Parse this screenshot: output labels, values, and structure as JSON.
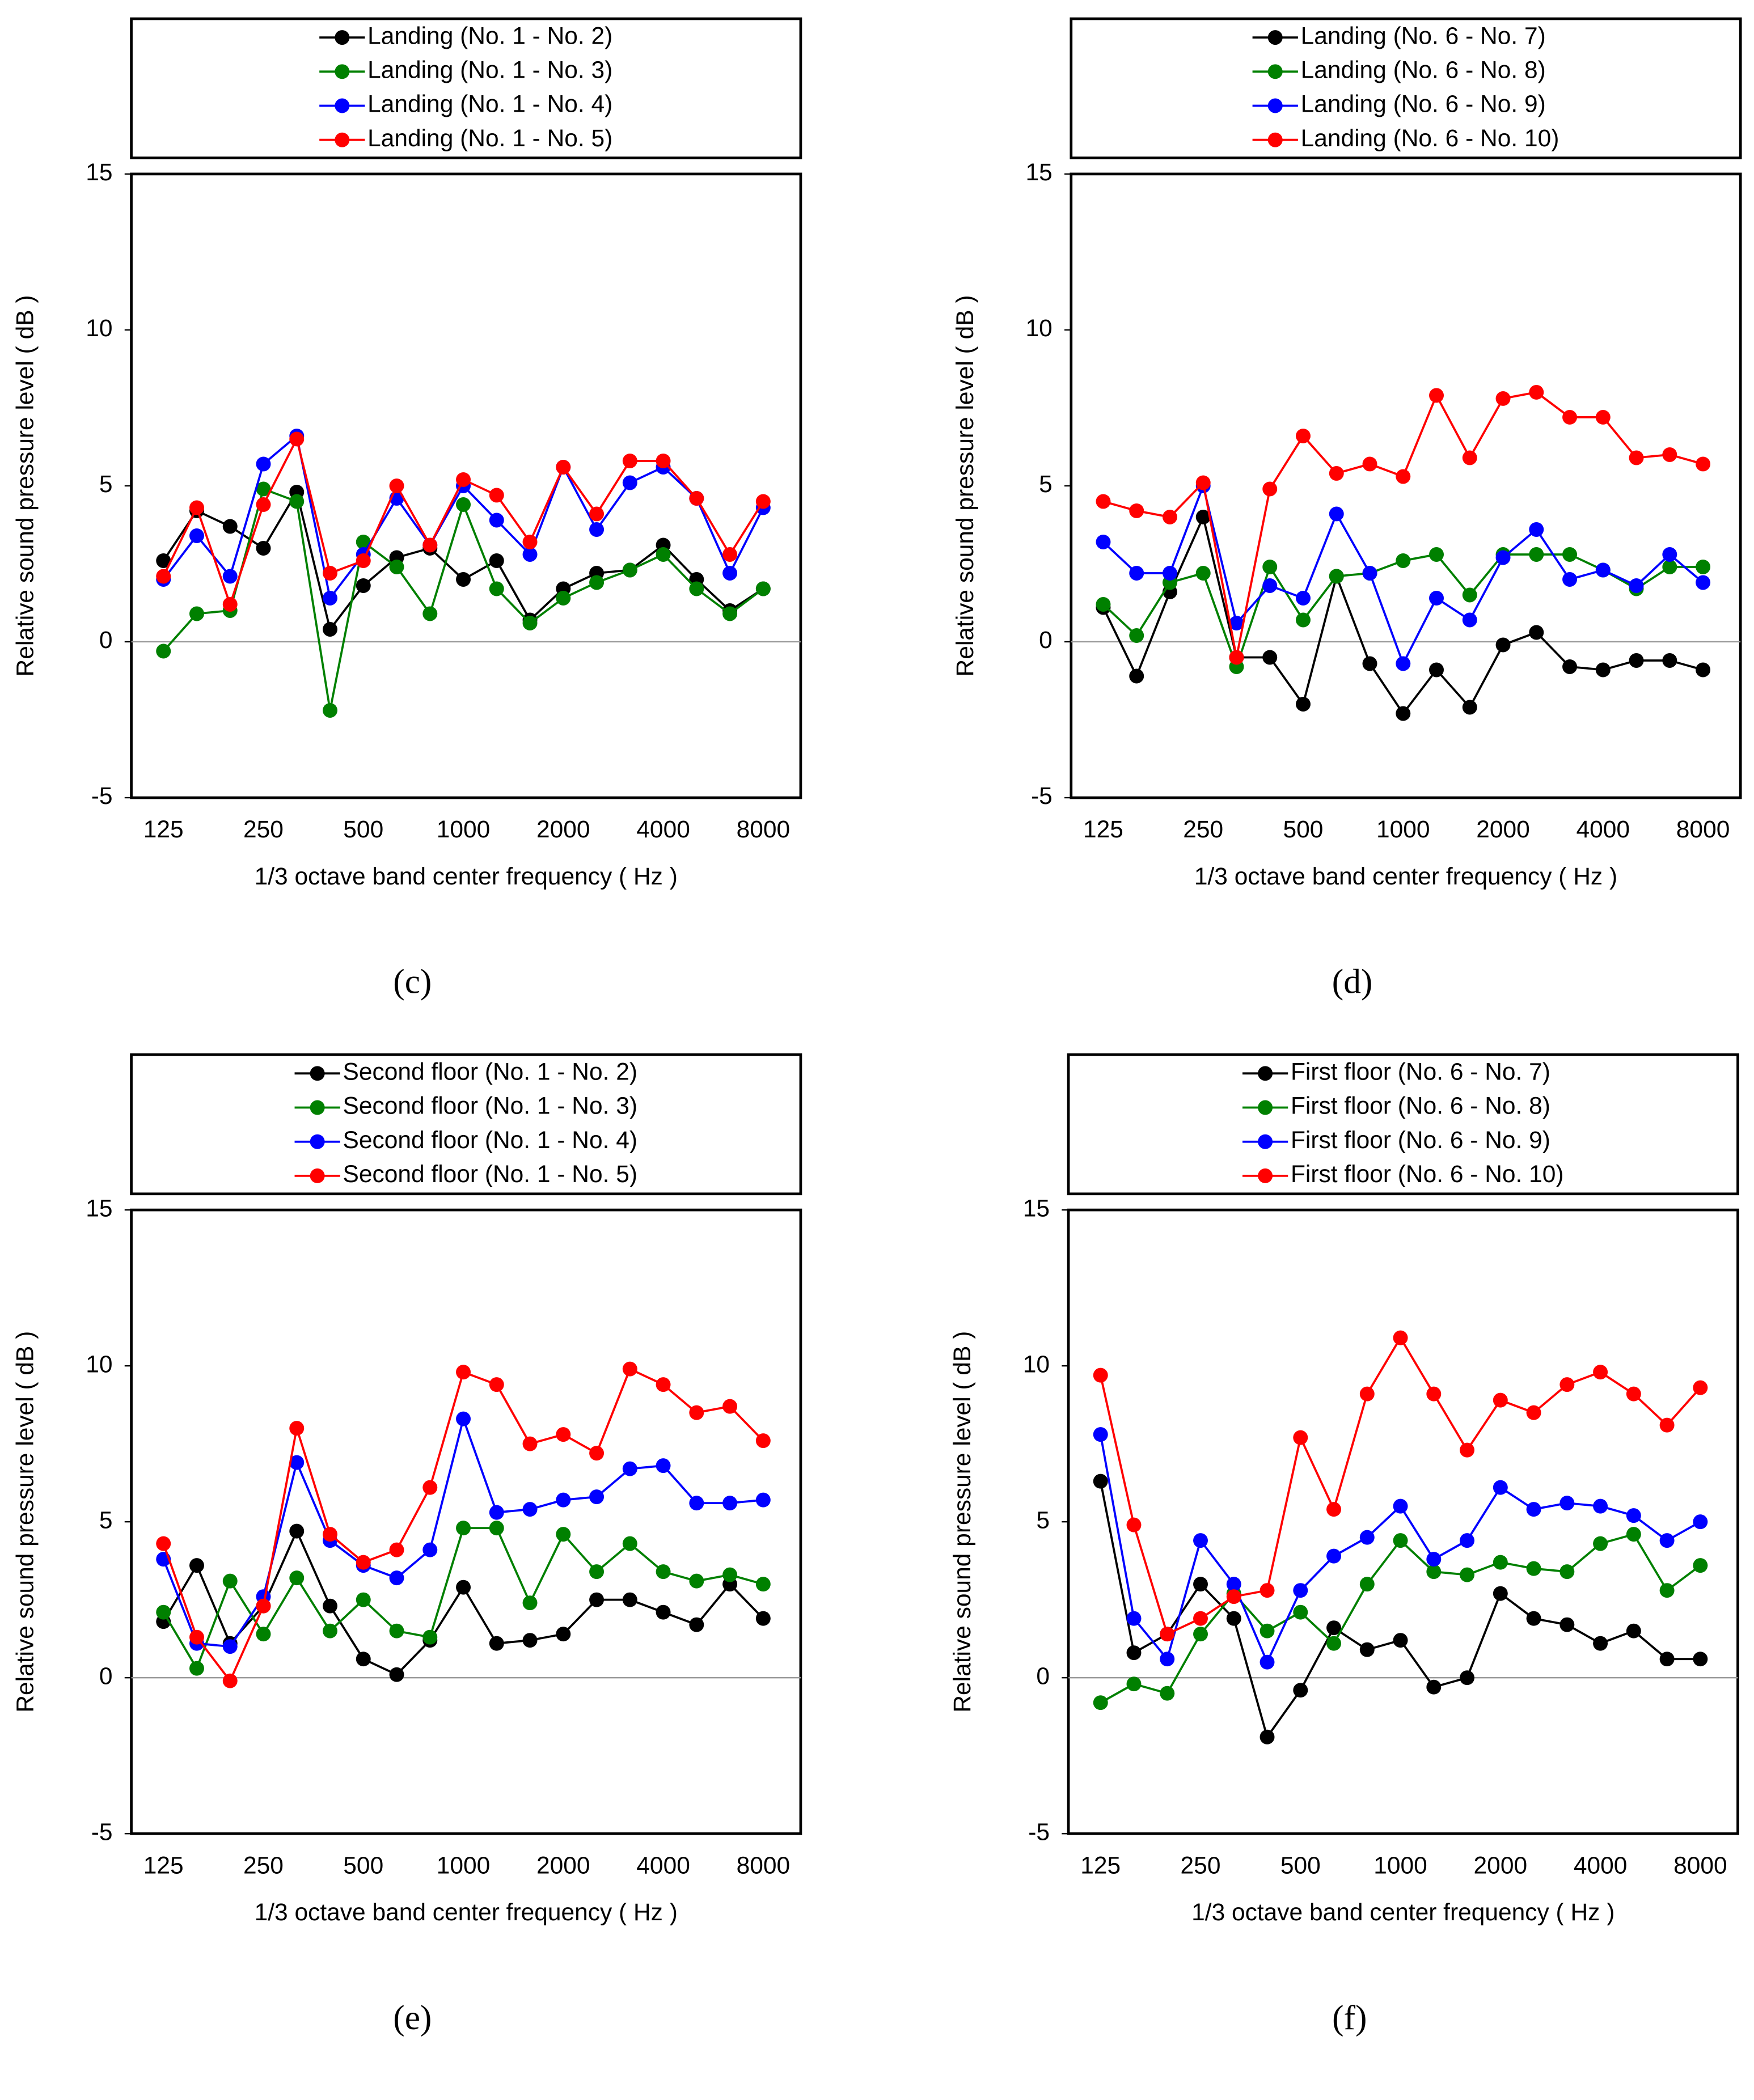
{
  "chart_data": [
    {
      "type": "line",
      "label": "(c)",
      "y_label": "Relative sound pressure level ( dB )",
      "x_label": "1/3 octave band center frequency ( Hz )",
      "categories": [
        "125",
        null,
        null,
        "250",
        null,
        null,
        "500",
        null,
        null,
        "1000",
        null,
        null,
        "2000",
        null,
        null,
        "4000",
        null,
        null,
        "8000"
      ],
      "ylim": [
        -5,
        15
      ],
      "yticks": [
        -5,
        0,
        5,
        10,
        15
      ],
      "baseline": 0,
      "series": [
        {
          "name": "Landing (No. 1 - No. 2)",
          "color": "#000000",
          "values": [
            2.6,
            4.2,
            3.7,
            3.0,
            4.8,
            0.4,
            1.8,
            2.7,
            3.0,
            2.0,
            2.6,
            0.7,
            1.7,
            2.2,
            2.3,
            3.1,
            2.0,
            1.0,
            1.7
          ]
        },
        {
          "name": "Landing (No. 1 - No. 3)",
          "color": "#008000",
          "values": [
            -0.3,
            0.9,
            1.0,
            4.9,
            4.5,
            -2.2,
            3.2,
            2.4,
            0.9,
            4.4,
            1.7,
            0.6,
            1.4,
            1.9,
            2.3,
            2.8,
            1.7,
            0.9,
            1.7
          ]
        },
        {
          "name": "Landing (No. 1 - No. 4)",
          "color": "#0000ff",
          "values": [
            2.0,
            3.4,
            2.1,
            5.7,
            6.6,
            1.4,
            2.8,
            4.6,
            3.1,
            5.0,
            3.9,
            2.8,
            5.6,
            3.6,
            5.1,
            5.6,
            4.6,
            2.2,
            4.3
          ]
        },
        {
          "name": "Landing (No. 1 - No. 5)",
          "color": "#ff0000",
          "values": [
            2.1,
            4.3,
            1.2,
            4.4,
            6.5,
            2.2,
            2.6,
            5.0,
            3.1,
            5.2,
            4.7,
            3.2,
            5.6,
            4.1,
            5.8,
            5.8,
            4.6,
            2.8,
            4.5
          ]
        }
      ]
    },
    {
      "type": "line",
      "label": "(d)",
      "y_label": "Relative sound pressure level ( dB )",
      "x_label": "1/3 octave band center frequency ( Hz )",
      "categories": [
        "125",
        null,
        null,
        "250",
        null,
        null,
        "500",
        null,
        null,
        "1000",
        null,
        null,
        "2000",
        null,
        null,
        "4000",
        null,
        null,
        "8000"
      ],
      "ylim": [
        -5,
        15
      ],
      "yticks": [
        -5,
        0,
        5,
        10,
        15
      ],
      "baseline": 0,
      "series": [
        {
          "name": "Landing (No. 6 - No. 7)",
          "color": "#000000",
          "values": [
            1.1,
            -1.1,
            1.6,
            4.0,
            -0.5,
            -0.5,
            -2.0,
            2.1,
            -0.7,
            -2.3,
            -0.9,
            -2.1,
            -0.1,
            0.3,
            -0.8,
            -0.9,
            -0.6,
            -0.6,
            -0.9
          ]
        },
        {
          "name": "Landing (No. 6 - No. 8)",
          "color": "#008000",
          "values": [
            1.2,
            0.2,
            1.9,
            2.2,
            -0.8,
            2.4,
            0.7,
            2.1,
            2.2,
            2.6,
            2.8,
            1.5,
            2.8,
            2.8,
            2.8,
            2.3,
            1.7,
            2.4,
            2.4
          ]
        },
        {
          "name": "Landing (No. 6 - No. 9)",
          "color": "#0000ff",
          "values": [
            3.2,
            2.2,
            2.2,
            5.0,
            0.6,
            1.8,
            1.4,
            4.1,
            2.2,
            -0.7,
            1.4,
            0.7,
            2.7,
            3.6,
            2.0,
            2.3,
            1.8,
            2.8,
            1.9
          ]
        },
        {
          "name": "Landing (No. 6 - No. 10)",
          "color": "#ff0000",
          "values": [
            4.5,
            4.2,
            4.0,
            5.1,
            -0.5,
            4.9,
            6.6,
            5.4,
            5.7,
            5.3,
            7.9,
            5.9,
            7.8,
            8.0,
            7.2,
            7.2,
            5.9,
            6.0,
            5.7
          ]
        }
      ]
    },
    {
      "type": "line",
      "label": "(e)",
      "y_label": "Relative sound pressure level ( dB )",
      "x_label": "1/3 octave band center frequency ( Hz )",
      "categories": [
        "125",
        null,
        null,
        "250",
        null,
        null,
        "500",
        null,
        null,
        "1000",
        null,
        null,
        "2000",
        null,
        null,
        "4000",
        null,
        null,
        "8000"
      ],
      "ylim": [
        -5,
        15
      ],
      "yticks": [
        -5,
        0,
        5,
        10,
        15
      ],
      "baseline": 0,
      "series": [
        {
          "name": "Second floor (No. 1 - No. 2)",
          "color": "#000000",
          "values": [
            1.8,
            3.6,
            1.1,
            2.3,
            4.7,
            2.3,
            0.6,
            0.1,
            1.2,
            2.9,
            1.1,
            1.2,
            1.4,
            2.5,
            2.5,
            2.1,
            1.7,
            3.0,
            1.9
          ]
        },
        {
          "name": "Second floor (No. 1 - No. 3)",
          "color": "#008000",
          "values": [
            2.1,
            0.3,
            3.1,
            1.4,
            3.2,
            1.5,
            2.5,
            1.5,
            1.3,
            4.8,
            4.8,
            2.4,
            4.6,
            3.4,
            4.3,
            3.4,
            3.1,
            3.3,
            3.0
          ]
        },
        {
          "name": "Second floor (No. 1 - No. 4)",
          "color": "#0000ff",
          "values": [
            3.8,
            1.1,
            1.0,
            2.6,
            6.9,
            4.4,
            3.6,
            3.2,
            4.1,
            8.3,
            5.3,
            5.4,
            5.7,
            5.8,
            6.7,
            6.8,
            5.6,
            5.6,
            5.7
          ]
        },
        {
          "name": "Second floor (No. 1 - No. 5)",
          "color": "#ff0000",
          "values": [
            4.3,
            1.3,
            -0.1,
            2.3,
            8.0,
            4.6,
            3.7,
            4.1,
            6.1,
            9.8,
            9.4,
            7.5,
            7.8,
            7.2,
            9.9,
            9.4,
            8.5,
            8.7,
            7.6
          ]
        }
      ]
    },
    {
      "type": "line",
      "label": "(f)",
      "y_label": "Relative sound pressure level ( dB )",
      "x_label": "1/3 octave band center frequency ( Hz )",
      "categories": [
        "125",
        null,
        null,
        "250",
        null,
        null,
        "500",
        null,
        null,
        "1000",
        null,
        null,
        "2000",
        null,
        null,
        "4000",
        null,
        null,
        "8000"
      ],
      "ylim": [
        -5,
        15
      ],
      "yticks": [
        -5,
        0,
        5,
        10,
        15
      ],
      "baseline": 0,
      "series": [
        {
          "name": "First floor (No. 6 - No. 7)",
          "color": "#000000",
          "values": [
            6.3,
            0.8,
            1.4,
            3.0,
            1.9,
            -1.9,
            -0.4,
            1.6,
            0.9,
            1.2,
            -0.3,
            0.0,
            2.7,
            1.9,
            1.7,
            1.1,
            1.5,
            0.6,
            0.6
          ]
        },
        {
          "name": "First floor (No. 6 - No. 8)",
          "color": "#008000",
          "values": [
            -0.8,
            -0.2,
            -0.5,
            1.4,
            2.7,
            1.5,
            2.1,
            1.1,
            3.0,
            4.4,
            3.4,
            3.3,
            3.7,
            3.5,
            3.4,
            4.3,
            4.6,
            2.8,
            3.6
          ]
        },
        {
          "name": "First floor (No. 6 - No. 9)",
          "color": "#0000ff",
          "values": [
            7.8,
            1.9,
            0.6,
            4.4,
            3.0,
            0.5,
            2.8,
            3.9,
            4.5,
            5.5,
            3.8,
            4.4,
            6.1,
            5.4,
            5.6,
            5.5,
            5.2,
            4.4,
            5.0
          ]
        },
        {
          "name": "First floor (No. 6 - No. 10)",
          "color": "#ff0000",
          "values": [
            9.7,
            4.9,
            1.4,
            1.9,
            2.6,
            2.8,
            7.7,
            5.4,
            9.1,
            10.9,
            9.1,
            7.3,
            8.9,
            8.5,
            9.4,
            9.8,
            9.1,
            8.1,
            9.3
          ]
        }
      ]
    }
  ]
}
